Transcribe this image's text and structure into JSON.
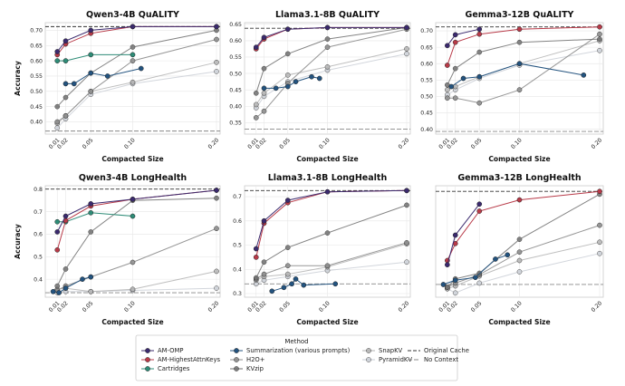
{
  "legend": {
    "title": "Method",
    "items": [
      {
        "key": "AM-OMP",
        "label": "AM-OMP",
        "kind": "line"
      },
      {
        "key": "AM-HighestAttnKeys",
        "label": "AM-HighestAttnKeys",
        "kind": "line"
      },
      {
        "key": "Cartridges",
        "label": "Cartridges",
        "kind": "line"
      },
      {
        "key": "Summarization",
        "label": "Summarization (various prompts)",
        "kind": "line"
      },
      {
        "key": "H2O+",
        "label": "H2O+",
        "kind": "line"
      },
      {
        "key": "KVzip",
        "label": "KVzip",
        "kind": "line"
      },
      {
        "key": "SnapKV",
        "label": "SnapKV",
        "kind": "line"
      },
      {
        "key": "PyramidKV",
        "label": "PyramidKV",
        "kind": "line"
      },
      {
        "key": "Original Cache",
        "label": "Original Cache",
        "kind": "hline"
      },
      {
        "key": "No Context",
        "label": "No Context",
        "kind": "hline"
      }
    ]
  },
  "styles": {
    "AM-OMP": {
      "color": "#3b2a6e",
      "marker": "circle",
      "alpha": 1
    },
    "AM-HighestAttnKeys": {
      "color": "#b83a48",
      "marker": "circle",
      "alpha": 1
    },
    "Cartridges": {
      "color": "#2e8c77",
      "marker": "circle",
      "alpha": 1
    },
    "Summarization": {
      "color": "#23537f",
      "marker": "circle",
      "alpha": 1
    },
    "H2O+": {
      "color": "#8c8c8c",
      "marker": "circle",
      "alpha": 0.9
    },
    "KVzip": {
      "color": "#6e6e6e",
      "marker": "circle",
      "alpha": 0.85
    },
    "SnapKV": {
      "color": "#b3b3b3",
      "marker": "circle",
      "alpha": 0.85
    },
    "PyramidKV": {
      "color": "#c8ccd4",
      "marker": "circle",
      "alpha": 0.8
    },
    "Original Cache": {
      "color": "#333333",
      "dash": "4,2"
    },
    "No Context": {
      "color": "#888888",
      "dash": "5,2"
    }
  },
  "chart_data": [
    {
      "type": "line",
      "title": "Qwen3-4B QuALITY",
      "xlabel": "Compacted Size",
      "ylabel": "Accuracy",
      "xlim": [
        0,
        0.2
      ],
      "ylim": [
        0.36,
        0.725
      ],
      "yticks": [
        0.4,
        0.45,
        0.5,
        0.55,
        0.6,
        0.65,
        0.7
      ],
      "xticks": [
        0.01,
        0.02,
        0.05,
        0.1,
        0.2
      ],
      "hlines": {
        "Original Cache": 0.712,
        "No Context": 0.37
      },
      "series": [
        {
          "name": "AM-OMP",
          "x": [
            0.01,
            0.02,
            0.05,
            0.1,
            0.2
          ],
          "y": [
            0.63,
            0.665,
            0.7,
            0.712,
            0.712
          ]
        },
        {
          "name": "AM-HighestAttnKeys",
          "x": [
            0.01,
            0.02,
            0.05,
            0.1,
            0.2
          ],
          "y": [
            0.62,
            0.655,
            0.69,
            0.712,
            0.712
          ]
        },
        {
          "name": "Cartridges",
          "x": [
            0.01,
            0.02,
            0.05,
            0.1
          ],
          "y": [
            0.6,
            0.6,
            0.62,
            0.62
          ]
        },
        {
          "name": "Summarization",
          "x": [
            0.02,
            0.03,
            0.05,
            0.07,
            0.11
          ],
          "y": [
            0.525,
            0.525,
            0.56,
            0.55,
            0.575
          ]
        },
        {
          "name": "KVzip",
          "x": [
            0.01,
            0.02,
            0.05,
            0.1,
            0.2
          ],
          "y": [
            0.45,
            0.48,
            0.56,
            0.645,
            0.7
          ]
        },
        {
          "name": "H2O+",
          "x": [
            0.01,
            0.02,
            0.05,
            0.1,
            0.2
          ],
          "y": [
            0.4,
            0.42,
            0.5,
            0.6,
            0.67
          ]
        },
        {
          "name": "SnapKV",
          "x": [
            0.01,
            0.02,
            0.05,
            0.1,
            0.2
          ],
          "y": [
            0.395,
            0.42,
            0.5,
            0.53,
            0.595
          ]
        },
        {
          "name": "PyramidKV",
          "x": [
            0.01,
            0.02,
            0.05,
            0.1,
            0.2
          ],
          "y": [
            0.38,
            0.41,
            0.49,
            0.525,
            0.565
          ]
        }
      ]
    },
    {
      "type": "line",
      "title": "Llama3.1-8B QuALITY",
      "xlabel": "Compacted Size",
      "ylabel": "",
      "xlim": [
        0,
        0.2
      ],
      "ylim": [
        0.315,
        0.655
      ],
      "yticks": [
        0.35,
        0.4,
        0.45,
        0.5,
        0.55,
        0.6,
        0.65
      ],
      "xticks": [
        0.01,
        0.02,
        0.05,
        0.1,
        0.2
      ],
      "hlines": {
        "Original Cache": 0.638,
        "No Context": 0.33
      },
      "series": [
        {
          "name": "AM-OMP",
          "x": [
            0.01,
            0.02,
            0.05,
            0.1,
            0.2
          ],
          "y": [
            0.58,
            0.61,
            0.635,
            0.64,
            0.64
          ]
        },
        {
          "name": "AM-HighestAttnKeys",
          "x": [
            0.01,
            0.02,
            0.05,
            0.1,
            0.2
          ],
          "y": [
            0.575,
            0.605,
            0.635,
            0.64,
            0.64
          ]
        },
        {
          "name": "Summarization",
          "x": [
            0.02,
            0.035,
            0.05,
            0.06,
            0.08,
            0.09
          ],
          "y": [
            0.455,
            0.455,
            0.46,
            0.475,
            0.49,
            0.485
          ]
        },
        {
          "name": "KVzip",
          "x": [
            0.01,
            0.02,
            0.05,
            0.1,
            0.2
          ],
          "y": [
            0.44,
            0.515,
            0.56,
            0.605,
            0.64
          ]
        },
        {
          "name": "H2O+",
          "x": [
            0.01,
            0.02,
            0.05,
            0.1,
            0.2
          ],
          "y": [
            0.365,
            0.385,
            0.47,
            0.58,
            0.635
          ]
        },
        {
          "name": "SnapKV",
          "x": [
            0.01,
            0.02,
            0.05,
            0.1,
            0.2
          ],
          "y": [
            0.405,
            0.44,
            0.495,
            0.52,
            0.575
          ]
        },
        {
          "name": "PyramidKV",
          "x": [
            0.01,
            0.02,
            0.05,
            0.1,
            0.2
          ],
          "y": [
            0.395,
            0.43,
            0.475,
            0.51,
            0.56
          ]
        }
      ]
    },
    {
      "type": "line",
      "title": "Gemma3-12B QuALITY",
      "xlabel": "Compacted Size",
      "ylabel": "",
      "xlim": [
        0,
        0.2
      ],
      "ylim": [
        0.385,
        0.725
      ],
      "yticks": [
        0.4,
        0.45,
        0.5,
        0.55,
        0.6,
        0.65,
        0.7
      ],
      "xticks": [
        0.01,
        0.02,
        0.05,
        0.1,
        0.2
      ],
      "hlines": {
        "Original Cache": 0.712,
        "No Context": 0.393
      },
      "series": [
        {
          "name": "AM-OMP",
          "x": [
            0.01,
            0.02,
            0.05
          ],
          "y": [
            0.655,
            0.688,
            0.705
          ]
        },
        {
          "name": "AM-HighestAttnKeys",
          "x": [
            0.01,
            0.02,
            0.05,
            0.1,
            0.2
          ],
          "y": [
            0.595,
            0.665,
            0.69,
            0.705,
            0.712
          ]
        },
        {
          "name": "Summarization",
          "x": [
            0.015,
            0.03,
            0.05,
            0.1,
            0.18
          ],
          "y": [
            0.53,
            0.555,
            0.56,
            0.6,
            0.565
          ]
        },
        {
          "name": "KVzip",
          "x": [
            0.01,
            0.02,
            0.05,
            0.1,
            0.2
          ],
          "y": [
            0.535,
            0.585,
            0.635,
            0.665,
            0.675
          ]
        },
        {
          "name": "H2O+",
          "x": [
            0.01,
            0.02,
            0.05,
            0.1,
            0.2
          ],
          "y": [
            0.495,
            0.495,
            0.48,
            0.52,
            0.69
          ]
        },
        {
          "name": "SnapKV",
          "x": [
            0.01,
            0.02,
            0.05,
            0.1,
            0.2
          ],
          "y": [
            0.52,
            0.53,
            0.56,
            0.6,
            0.67
          ]
        },
        {
          "name": "PyramidKV",
          "x": [
            0.01,
            0.02,
            0.05,
            0.1,
            0.2
          ],
          "y": [
            0.505,
            0.52,
            0.555,
            0.595,
            0.64
          ]
        }
      ]
    },
    {
      "type": "line",
      "title": "Qwen3-4B LongHealth",
      "xlabel": "Compacted Size",
      "ylabel": "Accuracy",
      "xlim": [
        0,
        0.2
      ],
      "ylim": [
        0.32,
        0.815
      ],
      "yticks": [
        0.4,
        0.5,
        0.6,
        0.7,
        0.8
      ],
      "xticks": [
        0.01,
        0.02,
        0.05,
        0.1,
        0.2
      ],
      "hlines": {
        "Original Cache": 0.8,
        "No Context": 0.34
      },
      "series": [
        {
          "name": "AM-OMP",
          "x": [
            0.01,
            0.02,
            0.05,
            0.1,
            0.2
          ],
          "y": [
            0.61,
            0.68,
            0.735,
            0.755,
            0.795
          ]
        },
        {
          "name": "AM-HighestAttnKeys",
          "x": [
            0.01,
            0.02,
            0.05,
            0.1,
            0.2
          ],
          "y": [
            0.53,
            0.66,
            0.725,
            0.755,
            0.795
          ]
        },
        {
          "name": "Cartridges",
          "x": [
            0.01,
            0.02,
            0.05,
            0.1
          ],
          "y": [
            0.655,
            0.655,
            0.695,
            0.68
          ]
        },
        {
          "name": "Summarization",
          "x": [
            0.005,
            0.012,
            0.02,
            0.04,
            0.05
          ],
          "y": [
            0.345,
            0.34,
            0.36,
            0.4,
            0.41
          ]
        },
        {
          "name": "KVzip",
          "x": [
            0.01,
            0.02,
            0.05,
            0.1,
            0.2
          ],
          "y": [
            0.37,
            0.445,
            0.61,
            0.75,
            0.76
          ]
        },
        {
          "name": "H2O+",
          "x": [
            0.01,
            0.02,
            0.05,
            0.1,
            0.2
          ],
          "y": [
            0.35,
            0.37,
            0.41,
            0.475,
            0.625
          ]
        },
        {
          "name": "SnapKV",
          "x": [
            0.01,
            0.02,
            0.05,
            0.1,
            0.2
          ],
          "y": [
            0.355,
            0.36,
            0.345,
            0.355,
            0.435
          ]
        },
        {
          "name": "PyramidKV",
          "x": [
            0.01,
            0.02,
            0.05,
            0.1,
            0.2
          ],
          "y": [
            0.34,
            0.345,
            0.345,
            0.35,
            0.36
          ]
        }
      ]
    },
    {
      "type": "line",
      "title": "Llama3.1-8B LongHealth",
      "xlabel": "Compacted Size",
      "ylabel": "",
      "xlim": [
        0,
        0.2
      ],
      "ylim": [
        0.285,
        0.745
      ],
      "yticks": [
        0.3,
        0.4,
        0.5,
        0.6,
        0.7
      ],
      "xticks": [
        0.01,
        0.02,
        0.05,
        0.1,
        0.2
      ],
      "hlines": {
        "Original Cache": 0.725,
        "No Context": 0.34
      },
      "series": [
        {
          "name": "AM-OMP",
          "x": [
            0.01,
            0.02,
            0.05,
            0.1,
            0.2
          ],
          "y": [
            0.485,
            0.6,
            0.685,
            0.72,
            0.725
          ]
        },
        {
          "name": "AM-HighestAttnKeys",
          "x": [
            0.01,
            0.02,
            0.05,
            0.1,
            0.2
          ],
          "y": [
            0.45,
            0.59,
            0.675,
            0.72,
            0.725
          ]
        },
        {
          "name": "Summarization",
          "x": [
            0.03,
            0.045,
            0.055,
            0.06,
            0.07,
            0.11
          ],
          "y": [
            0.31,
            0.325,
            0.34,
            0.36,
            0.335,
            0.34
          ]
        },
        {
          "name": "KVzip",
          "x": [
            0.01,
            0.02,
            0.05,
            0.1,
            0.2
          ],
          "y": [
            0.365,
            0.43,
            0.49,
            0.55,
            0.665
          ]
        },
        {
          "name": "H2O+",
          "x": [
            0.01,
            0.02,
            0.05,
            0.1,
            0.2
          ],
          "y": [
            0.36,
            0.38,
            0.415,
            0.415,
            0.51
          ]
        },
        {
          "name": "SnapKV",
          "x": [
            0.01,
            0.02,
            0.05,
            0.1,
            0.2
          ],
          "y": [
            0.355,
            0.37,
            0.38,
            0.41,
            0.505
          ]
        },
        {
          "name": "PyramidKV",
          "x": [
            0.01,
            0.02,
            0.05,
            0.1,
            0.2
          ],
          "y": [
            0.34,
            0.355,
            0.37,
            0.395,
            0.43
          ]
        }
      ]
    },
    {
      "type": "line",
      "title": "Gemma3-12B LongHealth",
      "xlabel": "Compacted Size",
      "ylabel": "",
      "xlim": [
        0,
        0.2
      ],
      "ylim": [
        0.34,
        0.735
      ],
      "yticks": [],
      "xticks": [
        0.01,
        0.02,
        0.05,
        0.1,
        0.2
      ],
      "hlines": {
        "Original Cache": 0.715,
        "No Context": 0.385
      },
      "series": [
        {
          "name": "AM-OMP",
          "x": [
            0.01,
            0.02,
            0.05
          ],
          "y": [
            0.455,
            0.56,
            0.67
          ]
        },
        {
          "name": "AM-HighestAttnKeys",
          "x": [
            0.01,
            0.02,
            0.05,
            0.1,
            0.2
          ],
          "y": [
            0.47,
            0.53,
            0.645,
            0.685,
            0.715
          ]
        },
        {
          "name": "Summarization",
          "x": [
            0.005,
            0.02,
            0.045,
            0.07,
            0.085
          ],
          "y": [
            0.385,
            0.4,
            0.41,
            0.475,
            0.49
          ]
        },
        {
          "name": "KVzip",
          "x": [
            0.01,
            0.02,
            0.05,
            0.1,
            0.2
          ],
          "y": [
            0.375,
            0.405,
            0.425,
            0.545,
            0.705
          ]
        },
        {
          "name": "H2O+",
          "x": [
            0.01,
            0.02,
            0.05,
            0.1,
            0.2
          ],
          "y": [
            0.375,
            0.39,
            0.42,
            0.5,
            0.595
          ]
        },
        {
          "name": "SnapKV",
          "x": [
            0.01,
            0.02,
            0.05,
            0.1,
            0.2
          ],
          "y": [
            0.37,
            0.38,
            0.415,
            0.47,
            0.535
          ]
        },
        {
          "name": "PyramidKV",
          "x": [
            0.01,
            0.02,
            0.05,
            0.1,
            0.2
          ],
          "y": [
            0.37,
            0.355,
            0.39,
            0.43,
            0.495
          ]
        }
      ]
    }
  ]
}
